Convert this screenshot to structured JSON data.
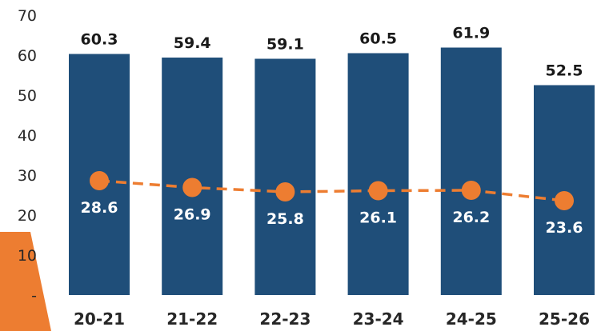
{
  "chart_data": {
    "type": "bar",
    "categories": [
      "20-21",
      "21-22",
      "22-23",
      "23-24",
      "24-25",
      "25-26"
    ],
    "series": [
      {
        "type": "bar",
        "values": [
          60.3,
          59.4,
          59.1,
          60.5,
          61.9,
          52.5
        ]
      },
      {
        "type": "line",
        "style": "dashed",
        "marker": "circle",
        "values": [
          28.6,
          26.9,
          25.8,
          26.1,
          26.2,
          23.6
        ]
      }
    ],
    "bar_labels": [
      "60.3",
      "59.4",
      "59.1",
      "60.5",
      "61.9",
      "52.5"
    ],
    "line_labels": [
      "28.6",
      "26.9",
      "25.8",
      "26.1",
      "26.2",
      "23.6"
    ],
    "y_ticks": [
      "-",
      "10",
      "20",
      "30",
      "40",
      "50",
      "60",
      "70"
    ],
    "ylim": [
      0,
      70
    ],
    "grid": false,
    "legend": "none",
    "colors": {
      "bar": "#1f4e79",
      "line": "#ed7d31",
      "accent_corner": "#ed7d31"
    }
  }
}
